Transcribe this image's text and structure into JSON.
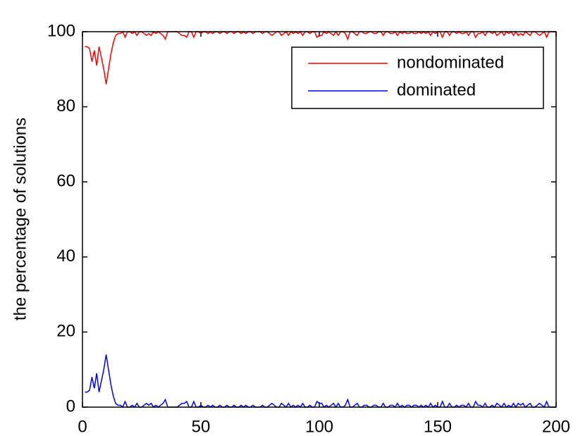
{
  "chart_data": {
    "type": "line",
    "ylabel": "the percentage of solutions",
    "x": [
      1,
      2,
      3,
      4,
      5,
      6,
      7,
      8,
      9,
      10,
      11,
      12,
      13,
      14,
      15,
      16,
      17,
      18,
      19,
      20,
      21,
      22,
      23,
      24,
      25,
      26,
      27,
      28,
      29,
      30,
      31,
      32,
      33,
      34,
      35,
      36,
      37,
      38,
      39,
      40,
      41,
      42,
      43,
      44,
      45,
      46,
      47,
      48,
      49,
      50,
      51,
      52,
      53,
      54,
      55,
      56,
      57,
      58,
      59,
      60,
      61,
      62,
      63,
      64,
      65,
      66,
      67,
      68,
      69,
      70,
      71,
      72,
      73,
      74,
      75,
      76,
      77,
      78,
      79,
      80,
      81,
      82,
      83,
      84,
      85,
      86,
      87,
      88,
      89,
      90,
      91,
      92,
      93,
      94,
      95,
      96,
      97,
      98,
      99,
      100,
      101,
      102,
      103,
      104,
      105,
      106,
      107,
      108,
      109,
      110,
      111,
      112,
      113,
      114,
      115,
      116,
      117,
      118,
      119,
      120,
      121,
      122,
      123,
      124,
      125,
      126,
      127,
      128,
      129,
      130,
      131,
      132,
      133,
      134,
      135,
      136,
      137,
      138,
      139,
      140,
      141,
      142,
      143,
      144,
      145,
      146,
      147,
      148,
      149,
      150,
      151,
      152,
      153,
      154,
      155,
      156,
      157,
      158,
      159,
      160,
      161,
      162,
      163,
      164,
      165,
      166,
      167,
      168,
      169,
      170,
      171,
      172,
      173,
      174,
      175,
      176,
      177,
      178,
      179,
      180,
      181,
      182,
      183,
      184,
      185,
      186,
      187,
      188,
      189,
      190,
      191,
      192,
      193,
      194,
      195,
      196,
      197,
      198,
      199,
      200
    ],
    "series": [
      {
        "name": "nondominated",
        "color": "#ff0000",
        "values": [
          96,
          96,
          95.5,
          92,
          95,
          91,
          96,
          93,
          90,
          86,
          90,
          94,
          97,
          99,
          99.5,
          99.5,
          100,
          98.5,
          100,
          100,
          99.5,
          100,
          99,
          100,
          100,
          99.5,
          99,
          99.5,
          99,
          100,
          99.5,
          100,
          99.5,
          99,
          98,
          100,
          100,
          100,
          100,
          100,
          99.5,
          99,
          99,
          98.5,
          100,
          100,
          98.5,
          100,
          100,
          99.5,
          100,
          100,
          99.5,
          100,
          99.5,
          100,
          100,
          99.5,
          100,
          100,
          99.5,
          100,
          100,
          99.5,
          100,
          100,
          99.5,
          100,
          99.5,
          100,
          100,
          99.5,
          100,
          100,
          100,
          99.5,
          100,
          100,
          99.5,
          99,
          99.5,
          100,
          100,
          99,
          99.5,
          100,
          99,
          100,
          99.5,
          100,
          99.5,
          100,
          99,
          100,
          100,
          99.5,
          100,
          100,
          98.5,
          99,
          99,
          100,
          99.5,
          100,
          99.5,
          99,
          100,
          99,
          100,
          100,
          99.5,
          98,
          100,
          100,
          99.5,
          99,
          100,
          100,
          99.5,
          99.5,
          100,
          100,
          99.5,
          99.5,
          100,
          100,
          99,
          100,
          100,
          99.5,
          99.5,
          100,
          99,
          100,
          99.5,
          100,
          99.5,
          99.5,
          100,
          99.5,
          99.5,
          100,
          99.5,
          100,
          99.5,
          100,
          99,
          100,
          99.5,
          100,
          100,
          98.5,
          100,
          100,
          99,
          100,
          100,
          99.5,
          100,
          99.5,
          99.5,
          100,
          99,
          100,
          100,
          98.5,
          99.5,
          99.5,
          100,
          99,
          100,
          100,
          99.5,
          100,
          99,
          99.5,
          100,
          99,
          100,
          99.5,
          100,
          99,
          100,
          99,
          99.5,
          99,
          100,
          99.5,
          99,
          100,
          100,
          99.5,
          99,
          99.5,
          100,
          98.5,
          100,
          100,
          100,
          100
        ]
      },
      {
        "name": "dominated",
        "color": "#0000ff",
        "values": [
          4,
          4,
          4.5,
          8,
          5,
          9,
          4,
          7,
          10,
          14,
          10,
          6,
          3,
          1,
          0.5,
          0.5,
          0,
          1.5,
          0,
          0,
          0.5,
          0,
          1,
          0,
          0,
          0.5,
          1,
          0.5,
          1,
          0,
          0.5,
          0,
          0.5,
          1,
          2,
          0,
          0,
          0,
          0,
          0,
          0.5,
          1,
          1,
          1.5,
          0,
          0,
          1.5,
          0,
          0,
          0.5,
          0,
          0,
          0.5,
          0,
          0.5,
          0,
          0,
          0.5,
          0,
          0,
          0.5,
          0,
          0,
          0.5,
          0,
          0,
          0.5,
          0,
          0.5,
          0,
          0,
          0.5,
          0,
          0,
          0,
          0.5,
          0,
          0,
          0.5,
          1,
          0.5,
          0,
          0,
          1,
          0.5,
          0,
          1,
          0,
          0.5,
          0,
          0.5,
          0,
          1,
          0,
          0,
          0.5,
          0,
          0,
          1.5,
          1,
          1,
          0,
          0.5,
          0,
          0.5,
          1,
          0,
          1,
          0,
          0,
          0.5,
          2,
          0,
          0,
          0.5,
          1,
          0,
          0,
          0.5,
          0.5,
          0,
          0,
          0.5,
          0.5,
          0,
          0,
          1,
          0,
          0,
          0.5,
          0.5,
          0,
          1,
          0,
          0.5,
          0,
          0.5,
          0.5,
          0,
          0.5,
          0.5,
          0,
          0.5,
          0,
          0.5,
          0,
          1,
          0,
          0.5,
          0,
          0,
          1.5,
          0,
          0,
          1,
          0,
          0,
          0.5,
          0,
          0.5,
          0.5,
          0,
          1,
          0,
          0,
          1.5,
          0.5,
          0.5,
          0,
          1,
          0,
          0,
          0.5,
          0,
          1,
          0.5,
          0,
          1,
          0,
          0.5,
          0,
          1,
          0,
          1,
          0.5,
          1,
          0,
          0.5,
          1,
          0,
          0,
          0.5,
          1,
          0.5,
          0,
          1.5,
          0,
          0,
          0,
          0
        ]
      }
    ],
    "xlim": [
      0,
      200
    ],
    "xticks": [
      0,
      50,
      100,
      150,
      200
    ],
    "ylim": [
      0,
      100
    ],
    "yticks": [
      0,
      20,
      40,
      60,
      80,
      100
    ],
    "legend": "upper right",
    "grid": false
  }
}
